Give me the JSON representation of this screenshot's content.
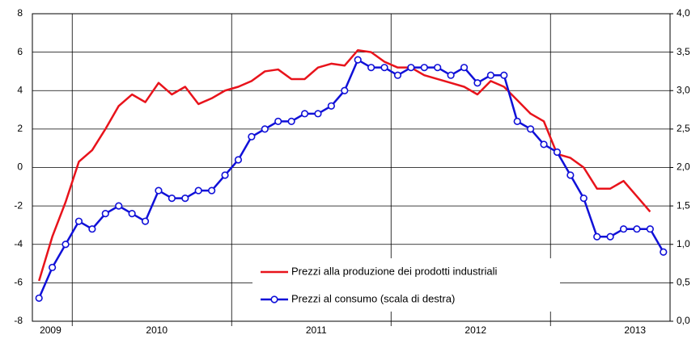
{
  "chart_data": {
    "type": "line",
    "categories": [
      null,
      "2009",
      null,
      null,
      null,
      null,
      null,
      null,
      null,
      "2010",
      null,
      null,
      null,
      null,
      null,
      null,
      null,
      null,
      null,
      null,
      null,
      "2011",
      null,
      null,
      null,
      null,
      null,
      null,
      null,
      null,
      null,
      null,
      null,
      "2012",
      null,
      null,
      null,
      null,
      null,
      null,
      null,
      null,
      null,
      null,
      null,
      "2013",
      null,
      null
    ],
    "ylim": [
      -8,
      8
    ],
    "yticks": [
      -8,
      -6,
      -4,
      -2,
      0,
      2,
      4,
      6,
      8
    ],
    "y2lim": [
      0,
      4
    ],
    "y2ticks": [
      {
        "value": 0,
        "label": "0,0"
      },
      {
        "value": 0.5,
        "label": "0,5"
      },
      {
        "value": 1,
        "label": "1,0"
      },
      {
        "value": 1.5,
        "label": "1,5"
      },
      {
        "value": 2,
        "label": "2,0"
      },
      {
        "value": 2.5,
        "label": "2,5"
      },
      {
        "value": 3,
        "label": "3,0"
      },
      {
        "value": 3.5,
        "label": "3,5"
      },
      {
        "value": 4,
        "label": "4,0"
      }
    ],
    "grid": true,
    "legend": "bottom",
    "series": [
      {
        "name": "Prezzi alla produzione dei prodotti industriali",
        "color": "#e8131b",
        "marker": false,
        "values": [
          -5.9,
          -3.6,
          -1.8,
          0.3,
          0.9,
          2.0,
          3.2,
          3.8,
          3.4,
          4.4,
          3.8,
          4.2,
          3.3,
          3.6,
          4.0,
          4.2,
          4.5,
          5.0,
          5.1,
          4.6,
          4.6,
          5.2,
          5.4,
          5.3,
          6.1,
          6.0,
          5.5,
          5.2,
          5.2,
          4.8,
          4.6,
          4.4,
          4.2,
          3.8,
          4.5,
          4.2,
          3.5,
          2.8,
          2.4,
          0.7,
          0.5,
          0.0,
          -1.1,
          -1.1,
          -0.7,
          -1.5,
          -2.3,
          null
        ]
      },
      {
        "name": "Prezzi al consumo (scala di destra)",
        "color": "#1010d8",
        "marker": true,
        "axis": "y2",
        "values": [
          0.3,
          0.7,
          1.0,
          1.3,
          1.2,
          1.4,
          1.5,
          1.4,
          1.3,
          1.7,
          1.6,
          1.6,
          1.7,
          1.7,
          1.9,
          2.1,
          2.4,
          2.5,
          2.6,
          2.6,
          2.7,
          2.7,
          2.8,
          3.0,
          3.4,
          3.3,
          3.3,
          3.2,
          3.3,
          3.3,
          3.3,
          3.2,
          3.3,
          3.1,
          3.2,
          3.2,
          2.6,
          2.5,
          2.3,
          2.2,
          1.9,
          1.6,
          1.1,
          1.1,
          1.2,
          1.2,
          1.2,
          0.9
        ]
      }
    ]
  }
}
